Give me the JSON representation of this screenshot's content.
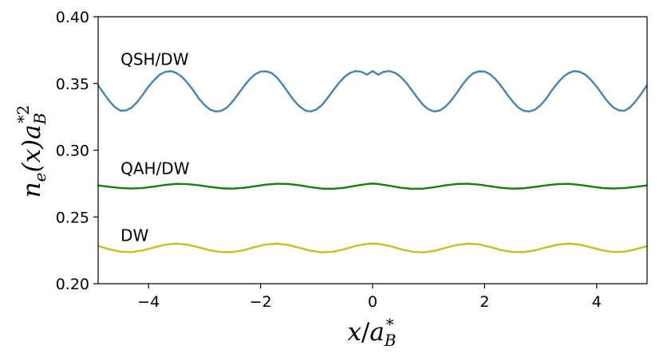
{
  "chart_data": {
    "type": "line",
    "title": "",
    "xlabel_parts": {
      "base": "x",
      "slash": "/",
      "a": "a",
      "sub": "B",
      "sup": "*"
    },
    "ylabel_parts": {
      "n": "n",
      "n_sub": "e",
      "arg": "(x)",
      "a": "a",
      "a_sub": "B",
      "a_sup": "*2"
    },
    "xlim": [
      -4.9,
      4.9
    ],
    "ylim": [
      0.2,
      0.4
    ],
    "xticks": [
      -4,
      -2,
      0,
      2,
      4
    ],
    "xtick_labels": [
      "−4",
      "−2",
      "0",
      "2",
      "4"
    ],
    "yticks": [
      0.2,
      0.25,
      0.3,
      0.35,
      0.4
    ],
    "ytick_labels": [
      "0.20",
      "0.25",
      "0.30",
      "0.35",
      "0.40"
    ],
    "grid": false,
    "legend": "none",
    "series": [
      {
        "label": "QSH/DW",
        "color": "#4682b4",
        "x": [
          -4.9,
          -4.8,
          -4.7,
          -4.6,
          -4.5,
          -4.4,
          -4.3,
          -4.2,
          -4.1,
          -4.0,
          -3.9,
          -3.8,
          -3.7,
          -3.6,
          -3.5,
          -3.4,
          -3.3,
          -3.2,
          -3.1,
          -3.0,
          -2.9,
          -2.8,
          -2.7,
          -2.6,
          -2.5,
          -2.4,
          -2.3,
          -2.2,
          -2.1,
          -2.0,
          -1.9,
          -1.8,
          -1.7,
          -1.6,
          -1.5,
          -1.4,
          -1.3,
          -1.2,
          -1.1,
          -1.0,
          -0.9,
          -0.8,
          -0.7,
          -0.6,
          -0.5,
          -0.4,
          -0.3,
          -0.2,
          -0.1,
          0.0,
          0.1,
          0.2,
          0.3,
          0.4,
          0.5,
          0.6,
          0.7,
          0.8,
          0.9,
          1.0,
          1.1,
          1.2,
          1.3,
          1.4,
          1.5,
          1.6,
          1.7,
          1.8,
          1.9,
          2.0,
          2.1,
          2.2,
          2.3,
          2.4,
          2.5,
          2.6,
          2.7,
          2.8,
          2.9,
          3.0,
          3.1,
          3.2,
          3.3,
          3.4,
          3.5,
          3.6,
          3.7,
          3.8,
          3.9,
          4.0,
          4.1,
          4.2,
          4.3,
          4.4,
          4.5,
          4.6,
          4.7,
          4.8,
          4.9
        ],
        "y": [
          0.3487,
          0.3426,
          0.3369,
          0.3322,
          0.3296,
          0.3298,
          0.332,
          0.3362,
          0.3418,
          0.3477,
          0.3526,
          0.3566,
          0.3587,
          0.3593,
          0.3578,
          0.3548,
          0.3502,
          0.3448,
          0.3386,
          0.3338,
          0.3304,
          0.329,
          0.3295,
          0.332,
          0.3365,
          0.342,
          0.3478,
          0.353,
          0.3568,
          0.3589,
          0.3591,
          0.3578,
          0.3541,
          0.3488,
          0.3428,
          0.3371,
          0.3326,
          0.3297,
          0.329,
          0.3306,
          0.334,
          0.3393,
          0.345,
          0.3505,
          0.355,
          0.358,
          0.3593,
          0.3587,
          0.3566,
          0.3593,
          0.3566,
          0.3587,
          0.3593,
          0.358,
          0.355,
          0.3505,
          0.345,
          0.3393,
          0.334,
          0.3306,
          0.329,
          0.3297,
          0.3326,
          0.3371,
          0.3428,
          0.3488,
          0.3541,
          0.3578,
          0.3591,
          0.3589,
          0.3568,
          0.353,
          0.3478,
          0.342,
          0.3365,
          0.332,
          0.3295,
          0.329,
          0.3304,
          0.3338,
          0.3386,
          0.3448,
          0.3502,
          0.3548,
          0.3578,
          0.3593,
          0.3587,
          0.3566,
          0.3526,
          0.3477,
          0.3418,
          0.3362,
          0.332,
          0.3298,
          0.3296,
          0.3322,
          0.3369,
          0.3426,
          0.3487
        ]
      },
      {
        "label": "QAH/DW",
        "color": "#108010",
        "x": [
          -4.9,
          -4.7,
          -4.5,
          -4.3,
          -4.1,
          -3.9,
          -3.7,
          -3.5,
          -3.3,
          -3.1,
          -2.9,
          -2.7,
          -2.5,
          -2.3,
          -2.1,
          -1.9,
          -1.7,
          -1.5,
          -1.3,
          -1.1,
          -0.9,
          -0.7,
          -0.5,
          -0.3,
          -0.1,
          0.0,
          0.1,
          0.3,
          0.5,
          0.7,
          0.9,
          1.1,
          1.3,
          1.5,
          1.7,
          1.9,
          2.1,
          2.3,
          2.5,
          2.7,
          2.9,
          3.1,
          3.3,
          3.5,
          3.7,
          3.9,
          4.1,
          4.3,
          4.5,
          4.7,
          4.9
        ],
        "y": [
          0.2736,
          0.2726,
          0.2717,
          0.2713,
          0.2717,
          0.2728,
          0.274,
          0.2748,
          0.2746,
          0.2737,
          0.2725,
          0.2715,
          0.2712,
          0.2718,
          0.273,
          0.2742,
          0.2749,
          0.2747,
          0.2737,
          0.2723,
          0.2712,
          0.2711,
          0.2719,
          0.2734,
          0.2747,
          0.275,
          0.2747,
          0.2734,
          0.2719,
          0.2711,
          0.2712,
          0.2723,
          0.2737,
          0.2747,
          0.2749,
          0.2742,
          0.273,
          0.2718,
          0.2712,
          0.2715,
          0.2725,
          0.2737,
          0.2746,
          0.2748,
          0.274,
          0.2728,
          0.2717,
          0.2713,
          0.2717,
          0.2726,
          0.2736
        ]
      },
      {
        "label": "DW",
        "color": "#c4c020",
        "x": [
          -4.9,
          -4.7,
          -4.5,
          -4.3,
          -4.1,
          -3.9,
          -3.7,
          -3.5,
          -3.3,
          -3.1,
          -2.9,
          -2.7,
          -2.5,
          -2.3,
          -2.1,
          -1.9,
          -1.7,
          -1.5,
          -1.3,
          -1.1,
          -0.9,
          -0.7,
          -0.5,
          -0.3,
          -0.1,
          0.0,
          0.1,
          0.3,
          0.5,
          0.7,
          0.9,
          1.1,
          1.3,
          1.5,
          1.7,
          1.9,
          2.1,
          2.3,
          2.5,
          2.7,
          2.9,
          3.1,
          3.3,
          3.5,
          3.7,
          3.9,
          4.1,
          4.3,
          4.5,
          4.7,
          4.9
        ],
        "y": [
          0.2282,
          0.2258,
          0.224,
          0.2237,
          0.225,
          0.2272,
          0.2292,
          0.23,
          0.2292,
          0.2272,
          0.225,
          0.2237,
          0.2237,
          0.2251,
          0.2275,
          0.2294,
          0.23,
          0.229,
          0.2268,
          0.2246,
          0.2235,
          0.224,
          0.2259,
          0.2283,
          0.2298,
          0.23,
          0.2298,
          0.2283,
          0.2259,
          0.224,
          0.2235,
          0.2246,
          0.2268,
          0.229,
          0.23,
          0.2294,
          0.2275,
          0.2251,
          0.2237,
          0.2237,
          0.225,
          0.2272,
          0.2292,
          0.23,
          0.2292,
          0.2272,
          0.225,
          0.2237,
          0.224,
          0.2258,
          0.2282
        ]
      }
    ],
    "annotations": [
      {
        "text": "QSH/DW",
        "x": -4.5,
        "y": 0.364
      },
      {
        "text": "QAH/DW",
        "x": -4.5,
        "y": 0.282
      },
      {
        "text": "DW",
        "x": -4.5,
        "y": 0.232
      }
    ]
  }
}
